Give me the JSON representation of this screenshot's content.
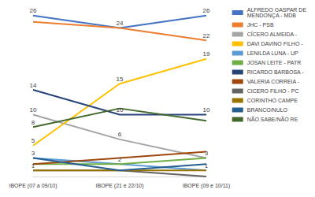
{
  "chart_data": {
    "type": "line",
    "categories": [
      "IBOPE (07 a 09/10)",
      "IBOPE (21 e 22/10)",
      "IBOPE (09 e 10/11)"
    ],
    "series": [
      {
        "name": "ALFREDO GASPAR DE MENDONÇA - MDB",
        "color": "#4472c4",
        "values": [
          26,
          24,
          26
        ]
      },
      {
        "name": "JHC - PSB",
        "color": "#ed7d31",
        "values": [
          25,
          24,
          22
        ]
      },
      {
        "name": "CÍCERO ALMEIDA -",
        "color": "#a5a5a5",
        "values": [
          10,
          6,
          3
        ]
      },
      {
        "name": "DAVI DAVINO FILHO -",
        "color": "#ffc000",
        "values": [
          5,
          15,
          19
        ]
      },
      {
        "name": "LENILDA LUNA - UP",
        "color": "#5b9bd5",
        "values": [
          3,
          2,
          1
        ]
      },
      {
        "name": "JOSAN LEITE - PATR",
        "color": "#70ad47",
        "values": [
          2,
          2,
          3
        ]
      },
      {
        "name": "RICARDO BARBOSA -",
        "color": "#264478",
        "values": [
          14,
          10,
          10
        ]
      },
      {
        "name": "VALERIA CORREIA -",
        "color": "#9e480e",
        "values": [
          2,
          3,
          4
        ]
      },
      {
        "name": "CICERO FILHO - PC",
        "color": "#636363",
        "values": [
          1,
          1,
          0
        ]
      },
      {
        "name": "CORINTHO CAMPE",
        "color": "#997300",
        "values": [
          1,
          1,
          1
        ]
      },
      {
        "name": "BRANCO/NULO",
        "color": "#255e91",
        "values": [
          3,
          1,
          2
        ]
      },
      {
        "name": "NÃO SABE/NÃO RE",
        "color": "#43682b",
        "values": [
          8,
          11,
          9
        ]
      }
    ],
    "ylim": [
      0,
      27
    ],
    "tick_labels": "x",
    "grid": false,
    "legend": "right",
    "data_labels": true
  }
}
